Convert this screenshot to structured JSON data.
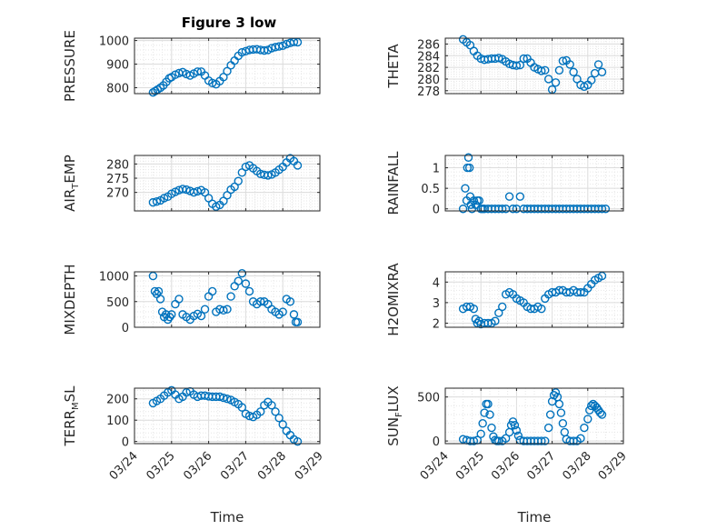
{
  "figure_title": "Figure 3 low",
  "marker_color": "#0072BD",
  "chart_data": [
    {
      "type": "scatter",
      "title": "Figure 3 low",
      "ylabel": "PRESSURE",
      "xlabel": "",
      "xlim": [
        0,
        5
      ],
      "ylim": [
        775,
        1010
      ],
      "yticks": [
        800,
        900,
        1000
      ],
      "ytick_labels": [
        "800",
        "900",
        "1000"
      ],
      "grid": true,
      "minor_grid": true,
      "x": [
        0.5,
        0.56,
        0.62,
        0.7,
        0.78,
        0.86,
        0.94,
        1.0,
        1.1,
        1.2,
        1.3,
        1.4,
        1.5,
        1.6,
        1.7,
        1.8,
        1.9,
        2.0,
        2.1,
        2.2,
        2.3,
        2.4,
        2.5,
        2.6,
        2.7,
        2.8,
        2.9,
        3.0,
        3.1,
        3.2,
        3.3,
        3.4,
        3.5,
        3.6,
        3.7,
        3.8,
        3.9,
        4.0,
        4.1,
        4.2,
        4.3,
        4.4
      ],
      "y": [
        780,
        786,
        792,
        800,
        810,
        825,
        840,
        845,
        855,
        862,
        866,
        858,
        852,
        860,
        868,
        868,
        852,
        830,
        820,
        815,
        828,
        845,
        870,
        895,
        915,
        935,
        950,
        955,
        960,
        962,
        963,
        960,
        958,
        960,
        968,
        972,
        975,
        978,
        985,
        990,
        994,
        993
      ]
    },
    {
      "type": "scatter",
      "ylabel": "THETA",
      "xlabel": "",
      "xlim": [
        0,
        5
      ],
      "ylim": [
        277.5,
        287
      ],
      "yticks": [
        278,
        280,
        282,
        284,
        286
      ],
      "ytick_labels": [
        "278",
        "280",
        "282",
        "284",
        "286"
      ],
      "grid": true,
      "minor_grid": true,
      "x": [
        0.5,
        0.6,
        0.7,
        0.8,
        0.9,
        1.0,
        1.1,
        1.2,
        1.3,
        1.4,
        1.5,
        1.6,
        1.7,
        1.8,
        1.9,
        2.0,
        2.1,
        2.2,
        2.3,
        2.4,
        2.5,
        2.6,
        2.7,
        2.8,
        2.9,
        3.0,
        3.1,
        3.2,
        3.3,
        3.4,
        3.5,
        3.6,
        3.7,
        3.8,
        3.9,
        4.0,
        4.1,
        4.2,
        4.3,
        4.4
      ],
      "y": [
        286.8,
        286.3,
        285.8,
        284.8,
        284.0,
        283.5,
        283.3,
        283.4,
        283.5,
        283.5,
        283.6,
        283.4,
        283.0,
        282.6,
        282.4,
        282.3,
        282.4,
        283.5,
        283.5,
        282.8,
        282.0,
        281.7,
        281.4,
        281.5,
        280.0,
        278.2,
        279.4,
        281.5,
        283.1,
        283.2,
        282.5,
        281.2,
        280.0,
        279.0,
        278.7,
        279.0,
        279.8,
        281.0,
        282.5,
        281.2
      ]
    },
    {
      "type": "scatter",
      "ylabel": "AIR",
      "ylabel_sub": "T",
      "ylabel_rest": "EMP",
      "xlabel": "",
      "xlim": [
        0,
        5
      ],
      "ylim": [
        263.5,
        283
      ],
      "yticks": [
        270,
        275,
        280
      ],
      "ytick_labels": [
        "270",
        "275",
        "280"
      ],
      "grid": true,
      "minor_grid": true,
      "x": [
        0.5,
        0.6,
        0.7,
        0.8,
        0.9,
        1.0,
        1.1,
        1.2,
        1.3,
        1.4,
        1.5,
        1.6,
        1.7,
        1.8,
        1.9,
        2.0,
        2.1,
        2.2,
        2.3,
        2.4,
        2.5,
        2.6,
        2.7,
        2.8,
        2.9,
        3.0,
        3.1,
        3.2,
        3.3,
        3.4,
        3.5,
        3.6,
        3.7,
        3.8,
        3.9,
        4.0,
        4.1,
        4.2,
        4.3,
        4.4
      ],
      "y": [
        266.5,
        266.8,
        267.2,
        268.0,
        268.5,
        269.5,
        270.2,
        270.8,
        271.2,
        271.0,
        270.5,
        270.0,
        270.4,
        270.8,
        270.0,
        268.0,
        266.0,
        265.0,
        265.6,
        267.0,
        269.0,
        271.0,
        272.0,
        274.0,
        277.0,
        279.0,
        279.5,
        278.5,
        277.5,
        276.5,
        276.2,
        276.0,
        276.3,
        277.0,
        278.0,
        279.0,
        280.5,
        282.0,
        281.0,
        279.5
      ]
    },
    {
      "type": "scatter",
      "ylabel": "RAINFALL",
      "xlabel": "",
      "xlim": [
        0,
        5
      ],
      "ylim": [
        -0.05,
        1.3
      ],
      "yticks": [
        0,
        0.5,
        1
      ],
      "ytick_labels": [
        "0",
        "0.5",
        "1"
      ],
      "grid": true,
      "minor_grid": true,
      "x": [
        0.5,
        0.56,
        0.6,
        0.62,
        0.65,
        0.68,
        0.7,
        0.72,
        0.75,
        0.8,
        0.85,
        0.9,
        0.95,
        1.0,
        1.05,
        1.1,
        1.2,
        1.3,
        1.4,
        1.5,
        1.6,
        1.7,
        1.8,
        1.9,
        2.0,
        2.1,
        2.2,
        2.3,
        2.4,
        2.5,
        2.6,
        2.7,
        2.8,
        2.9,
        3.0,
        3.1,
        3.2,
        3.3,
        3.4,
        3.5,
        3.6,
        3.7,
        3.8,
        3.9,
        4.0,
        4.1,
        4.2,
        4.3,
        4.4,
        4.5
      ],
      "y": [
        0,
        0.5,
        0.2,
        1.0,
        1.25,
        1.0,
        0.3,
        0.1,
        0.0,
        0.2,
        0.1,
        0.2,
        0.2,
        0.0,
        0.0,
        0.0,
        0.0,
        0.0,
        0.0,
        0.0,
        0.0,
        0.0,
        0.3,
        0.0,
        0.0,
        0.3,
        0.0,
        0.0,
        0.0,
        0.0,
        0.0,
        0.0,
        0.0,
        0.0,
        0.0,
        0.0,
        0.0,
        0.0,
        0.0,
        0.0,
        0.0,
        0.0,
        0.0,
        0.0,
        0.0,
        0.0,
        0.0,
        0.0,
        0.0,
        0.0
      ]
    },
    {
      "type": "scatter",
      "ylabel": "MIXDEPTH",
      "xlabel": "",
      "xlim": [
        0,
        5
      ],
      "ylim": [
        0,
        1080
      ],
      "yticks": [
        0,
        500,
        1000
      ],
      "ytick_labels": [
        "0",
        "500",
        "1000"
      ],
      "grid": true,
      "minor_grid": true,
      "x": [
        0.5,
        0.55,
        0.6,
        0.65,
        0.7,
        0.75,
        0.8,
        0.85,
        0.9,
        0.95,
        1.0,
        1.1,
        1.2,
        1.3,
        1.4,
        1.5,
        1.6,
        1.7,
        1.8,
        1.9,
        2.0,
        2.1,
        2.2,
        2.3,
        2.4,
        2.5,
        2.6,
        2.7,
        2.8,
        2.9,
        3.0,
        3.1,
        3.2,
        3.3,
        3.4,
        3.5,
        3.6,
        3.7,
        3.8,
        3.9,
        4.0,
        4.1,
        4.2,
        4.3,
        4.35,
        4.4
      ],
      "y": [
        1000,
        700,
        650,
        700,
        550,
        300,
        200,
        250,
        150,
        200,
        250,
        450,
        550,
        250,
        200,
        150,
        220,
        260,
        220,
        350,
        600,
        700,
        300,
        350,
        330,
        350,
        600,
        800,
        900,
        1050,
        850,
        700,
        500,
        450,
        500,
        500,
        450,
        350,
        300,
        250,
        300,
        550,
        500,
        250,
        100,
        100
      ]
    },
    {
      "type": "scatter",
      "ylabel": "H2OMIXRA",
      "xlabel": "",
      "xlim": [
        0,
        5
      ],
      "ylim": [
        1.8,
        4.5
      ],
      "yticks": [
        2,
        3,
        4
      ],
      "ytick_labels": [
        "2",
        "3",
        "4"
      ],
      "grid": true,
      "minor_grid": true,
      "x": [
        0.5,
        0.6,
        0.7,
        0.8,
        0.85,
        0.9,
        0.95,
        1.0,
        1.1,
        1.2,
        1.3,
        1.4,
        1.5,
        1.6,
        1.7,
        1.8,
        1.9,
        2.0,
        2.1,
        2.2,
        2.3,
        2.4,
        2.5,
        2.6,
        2.7,
        2.8,
        2.9,
        3.0,
        3.1,
        3.2,
        3.3,
        3.4,
        3.5,
        3.6,
        3.7,
        3.8,
        3.9,
        4.0,
        4.1,
        4.2,
        4.3,
        4.4
      ],
      "y": [
        2.7,
        2.8,
        2.8,
        2.7,
        2.2,
        2.0,
        2.1,
        1.95,
        2.0,
        2.0,
        2.0,
        2.1,
        2.5,
        2.8,
        3.4,
        3.5,
        3.4,
        3.2,
        3.1,
        3.0,
        2.8,
        2.7,
        2.7,
        2.8,
        2.7,
        3.2,
        3.4,
        3.5,
        3.5,
        3.6,
        3.6,
        3.5,
        3.5,
        3.6,
        3.5,
        3.5,
        3.5,
        3.7,
        3.9,
        4.1,
        4.2,
        4.3
      ]
    },
    {
      "type": "scatter",
      "ylabel": "TERR",
      "ylabel_sub": "M",
      "ylabel_rest": "SL",
      "xlabel": "Time",
      "xlim": [
        0,
        5
      ],
      "ylim": [
        -10,
        250
      ],
      "yticks": [
        0,
        100,
        200
      ],
      "ytick_labels": [
        "0",
        "100",
        "200"
      ],
      "xticks": [
        0,
        1,
        2,
        3,
        4,
        5
      ],
      "xtick_labels": [
        "03/24",
        "03/25",
        "03/26",
        "03/27",
        "03/28",
        "03/29"
      ],
      "grid": true,
      "minor_grid": true,
      "x": [
        0.5,
        0.6,
        0.7,
        0.8,
        0.9,
        1.0,
        1.1,
        1.2,
        1.3,
        1.4,
        1.5,
        1.6,
        1.7,
        1.8,
        1.9,
        2.0,
        2.1,
        2.2,
        2.3,
        2.4,
        2.5,
        2.6,
        2.7,
        2.8,
        2.9,
        3.0,
        3.1,
        3.2,
        3.3,
        3.4,
        3.5,
        3.6,
        3.7,
        3.8,
        3.9,
        4.0,
        4.1,
        4.2,
        4.3,
        4.4
      ],
      "y": [
        180,
        190,
        200,
        215,
        230,
        240,
        220,
        200,
        210,
        230,
        235,
        220,
        210,
        215,
        215,
        212,
        210,
        210,
        210,
        205,
        200,
        195,
        185,
        175,
        160,
        130,
        120,
        115,
        125,
        140,
        170,
        185,
        170,
        140,
        110,
        80,
        50,
        30,
        10,
        0
      ]
    },
    {
      "type": "scatter",
      "ylabel": "SUN",
      "ylabel_sub": "F",
      "ylabel_rest": "LUX",
      "xlabel": "Time",
      "xlim": [
        0,
        5
      ],
      "ylim": [
        -30,
        600
      ],
      "yticks": [
        0,
        500
      ],
      "ytick_labels": [
        "0",
        "500"
      ],
      "xticks": [
        0,
        1,
        2,
        3,
        4,
        5
      ],
      "xtick_labels": [
        "03/24",
        "03/25",
        "03/26",
        "03/27",
        "03/28",
        "03/29"
      ],
      "grid": true,
      "minor_grid": true,
      "x": [
        0.5,
        0.6,
        0.7,
        0.8,
        0.9,
        1.0,
        1.05,
        1.1,
        1.15,
        1.2,
        1.25,
        1.3,
        1.35,
        1.4,
        1.45,
        1.5,
        1.6,
        1.7,
        1.8,
        1.85,
        1.9,
        1.95,
        2.0,
        2.05,
        2.1,
        2.2,
        2.3,
        2.4,
        2.5,
        2.6,
        2.7,
        2.8,
        2.9,
        2.95,
        3.0,
        3.05,
        3.1,
        3.15,
        3.2,
        3.25,
        3.3,
        3.35,
        3.4,
        3.5,
        3.6,
        3.7,
        3.8,
        3.9,
        4.0,
        4.05,
        4.1,
        4.15,
        4.2,
        4.25,
        4.3,
        4.35,
        4.4
      ],
      "y": [
        20,
        10,
        0,
        0,
        10,
        80,
        200,
        320,
        420,
        420,
        300,
        150,
        50,
        10,
        0,
        0,
        0,
        30,
        100,
        180,
        220,
        180,
        120,
        60,
        10,
        0,
        0,
        0,
        0,
        0,
        0,
        0,
        150,
        300,
        450,
        520,
        550,
        500,
        420,
        320,
        200,
        100,
        20,
        0,
        0,
        0,
        30,
        150,
        250,
        350,
        400,
        420,
        400,
        380,
        350,
        320,
        300
      ]
    }
  ]
}
